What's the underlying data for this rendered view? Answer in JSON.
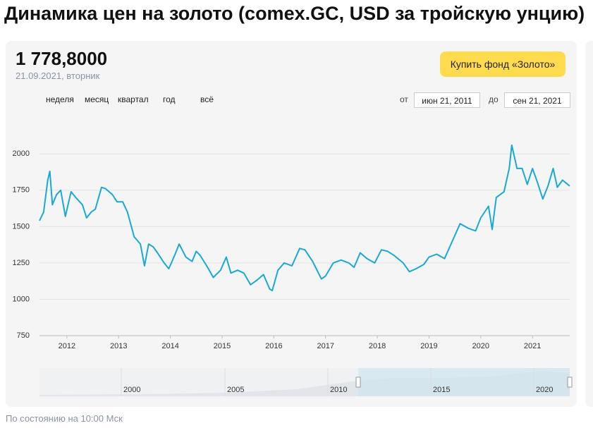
{
  "title": "Динамика цен на золото (comex.GC, USD за тройскую унцию)",
  "price": "1 778,8000",
  "date": "21.09.2021",
  "weekday": ", вторник",
  "button": "Купить фонд «Золото»",
  "periods": [
    "неделя",
    "месяц",
    "квартал",
    "год",
    "всё"
  ],
  "range": {
    "from_label": "от",
    "from": "июн 21, 2011",
    "to_label": "до",
    "to": "сен 21, 2021"
  },
  "navigator": {
    "labels": [
      "2000",
      "2005",
      "2010",
      "2015",
      "2020"
    ]
  },
  "footer": "По состоянию на 10:00 Мск",
  "chart_data": {
    "type": "line",
    "color": "#19a9d2",
    "x": [
      2011.47,
      2011.55,
      2011.63,
      2011.67,
      2011.72,
      2011.8,
      2011.88,
      2011.97,
      2012.08,
      2012.17,
      2012.3,
      2012.38,
      2012.47,
      2012.55,
      2012.67,
      2012.75,
      2012.88,
      2012.97,
      2013.08,
      2013.17,
      2013.3,
      2013.42,
      2013.5,
      2013.58,
      2013.67,
      2013.75,
      2013.88,
      2013.97,
      2014.08,
      2014.17,
      2014.3,
      2014.42,
      2014.5,
      2014.58,
      2014.72,
      2014.83,
      2014.97,
      2015.08,
      2015.17,
      2015.3,
      2015.42,
      2015.55,
      2015.67,
      2015.8,
      2015.92,
      2015.97,
      2016.08,
      2016.2,
      2016.35,
      2016.5,
      2016.6,
      2016.75,
      2016.92,
      2017.0,
      2017.15,
      2017.3,
      2017.45,
      2017.55,
      2017.67,
      2017.8,
      2017.95,
      2018.08,
      2018.2,
      2018.33,
      2018.5,
      2018.62,
      2018.75,
      2018.9,
      2019.0,
      2019.15,
      2019.3,
      2019.45,
      2019.6,
      2019.75,
      2019.9,
      2020.0,
      2020.15,
      2020.22,
      2020.3,
      2020.45,
      2020.55,
      2020.6,
      2020.7,
      2020.8,
      2020.9,
      2021.0,
      2021.1,
      2021.2,
      2021.3,
      2021.4,
      2021.48,
      2021.58,
      2021.72
    ],
    "values": [
      1540,
      1600,
      1820,
      1880,
      1650,
      1720,
      1750,
      1570,
      1740,
      1700,
      1650,
      1560,
      1600,
      1620,
      1770,
      1760,
      1720,
      1670,
      1670,
      1600,
      1430,
      1380,
      1230,
      1380,
      1360,
      1320,
      1250,
      1210,
      1300,
      1380,
      1290,
      1260,
      1330,
      1300,
      1220,
      1150,
      1200,
      1290,
      1180,
      1200,
      1180,
      1100,
      1130,
      1170,
      1070,
      1060,
      1200,
      1250,
      1230,
      1350,
      1340,
      1260,
      1140,
      1160,
      1250,
      1270,
      1250,
      1220,
      1320,
      1280,
      1250,
      1340,
      1330,
      1300,
      1250,
      1190,
      1210,
      1240,
      1290,
      1310,
      1280,
      1400,
      1520,
      1490,
      1470,
      1560,
      1640,
      1480,
      1700,
      1740,
      1900,
      2060,
      1900,
      1900,
      1790,
      1900,
      1800,
      1690,
      1780,
      1900,
      1770,
      1820,
      1778.8
    ],
    "xlim": [
      2011.47,
      2021.72
    ],
    "xticks": [
      2012,
      2013,
      2014,
      2015,
      2016,
      2017,
      2018,
      2019,
      2020,
      2021
    ],
    "ylim": [
      750,
      2200
    ],
    "yticks": [
      750,
      1000,
      1250,
      1500,
      1750,
      2000
    ],
    "grid": true
  }
}
